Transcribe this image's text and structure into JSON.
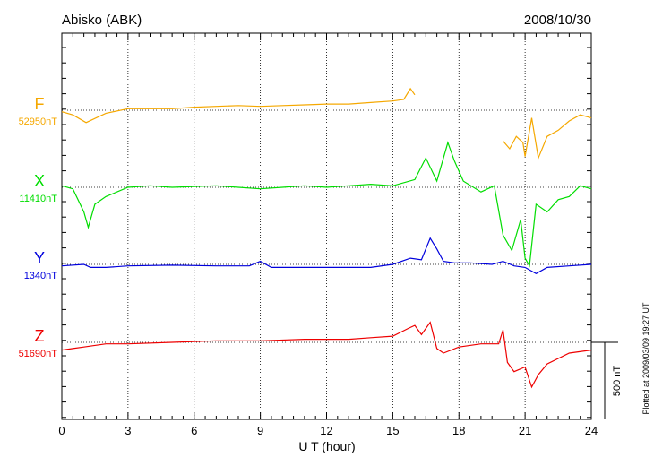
{
  "chart_data": {
    "type": "line",
    "title": "Abisko (ABK)",
    "date": "2008/10/30",
    "xlabel": "U T (hour)",
    "xlim": [
      0,
      24
    ],
    "x_ticks": [
      "0",
      "3",
      "6",
      "9",
      "12",
      "15",
      "18",
      "21",
      "24"
    ],
    "scale_label": "500 nT",
    "plotted_note": "Plotted at 2009/03/09 19:27 UT",
    "grid": true,
    "series": [
      {
        "name": "F",
        "baseline_label": "52950nT",
        "baseline": 52950,
        "color": "#f5a800",
        "points": [
          [
            0,
            52940
          ],
          [
            0.5,
            52920
          ],
          [
            1.1,
            52870
          ],
          [
            2,
            52930
          ],
          [
            3,
            52960
          ],
          [
            4,
            52960
          ],
          [
            5,
            52960
          ],
          [
            6,
            52970
          ],
          [
            7,
            52975
          ],
          [
            8,
            52980
          ],
          [
            9,
            52975
          ],
          [
            10,
            52980
          ],
          [
            11,
            52985
          ],
          [
            12,
            52990
          ],
          [
            13,
            52990
          ],
          [
            14,
            53000
          ],
          [
            15,
            53010
          ],
          [
            15.5,
            53020
          ],
          [
            15.8,
            53090
          ],
          [
            16.0,
            53050
          ]
        ],
        "points_after_gap": [
          [
            20.0,
            52750
          ],
          [
            20.3,
            52700
          ],
          [
            20.6,
            52780
          ],
          [
            20.9,
            52740
          ],
          [
            21.0,
            52650
          ],
          [
            21.3,
            52900
          ],
          [
            21.6,
            52640
          ],
          [
            22,
            52780
          ],
          [
            22.5,
            52820
          ],
          [
            23,
            52880
          ],
          [
            23.5,
            52920
          ],
          [
            24,
            52900
          ]
        ]
      },
      {
        "name": "X",
        "baseline_label": "11410nT",
        "baseline": 11410,
        "color": "#00dd00",
        "points": [
          [
            0,
            11420
          ],
          [
            0.5,
            11400
          ],
          [
            1.0,
            11250
          ],
          [
            1.2,
            11150
          ],
          [
            1.5,
            11300
          ],
          [
            2,
            11350
          ],
          [
            3,
            11410
          ],
          [
            4,
            11420
          ],
          [
            5,
            11410
          ],
          [
            6,
            11415
          ],
          [
            7,
            11420
          ],
          [
            8,
            11410
          ],
          [
            9,
            11400
          ],
          [
            10,
            11410
          ],
          [
            11,
            11420
          ],
          [
            12,
            11410
          ],
          [
            13,
            11420
          ],
          [
            14,
            11430
          ],
          [
            15,
            11420
          ],
          [
            16,
            11460
          ],
          [
            16.5,
            11600
          ],
          [
            17,
            11450
          ],
          [
            17.5,
            11700
          ],
          [
            17.8,
            11580
          ],
          [
            18.2,
            11450
          ],
          [
            19,
            11380
          ],
          [
            19.6,
            11420
          ],
          [
            20,
            11100
          ],
          [
            20.4,
            11000
          ],
          [
            20.8,
            11200
          ],
          [
            21.0,
            10950
          ],
          [
            21.2,
            10900
          ],
          [
            21.5,
            11300
          ],
          [
            22,
            11250
          ],
          [
            22.5,
            11330
          ],
          [
            23,
            11350
          ],
          [
            23.5,
            11420
          ],
          [
            24,
            11400
          ]
        ]
      },
      {
        "name": "Y",
        "baseline_label": "1340nT",
        "baseline": 1340,
        "color": "#0000dd",
        "points": [
          [
            0,
            1330
          ],
          [
            1,
            1340
          ],
          [
            1.3,
            1320
          ],
          [
            2,
            1320
          ],
          [
            3,
            1330
          ],
          [
            5,
            1335
          ],
          [
            7,
            1330
          ],
          [
            8.5,
            1330
          ],
          [
            9,
            1360
          ],
          [
            9.5,
            1320
          ],
          [
            12,
            1320
          ],
          [
            14,
            1320
          ],
          [
            15,
            1340
          ],
          [
            15.8,
            1380
          ],
          [
            16.3,
            1370
          ],
          [
            16.7,
            1510
          ],
          [
            17.0,
            1440
          ],
          [
            17.3,
            1360
          ],
          [
            17.8,
            1350
          ],
          [
            18.5,
            1350
          ],
          [
            19.5,
            1340
          ],
          [
            20,
            1360
          ],
          [
            20.5,
            1330
          ],
          [
            21,
            1320
          ],
          [
            21.5,
            1280
          ],
          [
            22,
            1320
          ],
          [
            23,
            1330
          ],
          [
            24,
            1340
          ]
        ]
      },
      {
        "name": "Z",
        "baseline_label": "51690nT",
        "baseline": 51690,
        "color": "#ee0000",
        "points": [
          [
            0,
            51640
          ],
          [
            0.5,
            51650
          ],
          [
            1,
            51660
          ],
          [
            2,
            51680
          ],
          [
            3,
            51680
          ],
          [
            5,
            51690
          ],
          [
            7,
            51700
          ],
          [
            9,
            51700
          ],
          [
            11,
            51710
          ],
          [
            13,
            51710
          ],
          [
            14,
            51720
          ],
          [
            15,
            51730
          ],
          [
            15.7,
            51780
          ],
          [
            16,
            51800
          ],
          [
            16.3,
            51740
          ],
          [
            16.7,
            51820
          ],
          [
            17.0,
            51650
          ],
          [
            17.3,
            51620
          ],
          [
            18,
            51660
          ],
          [
            19,
            51680
          ],
          [
            19.8,
            51680
          ],
          [
            20,
            51770
          ],
          [
            20.2,
            51560
          ],
          [
            20.5,
            51500
          ],
          [
            21,
            51530
          ],
          [
            21.3,
            51400
          ],
          [
            21.6,
            51480
          ],
          [
            22,
            51550
          ],
          [
            23,
            51620
          ],
          [
            24,
            51640
          ]
        ]
      }
    ]
  }
}
